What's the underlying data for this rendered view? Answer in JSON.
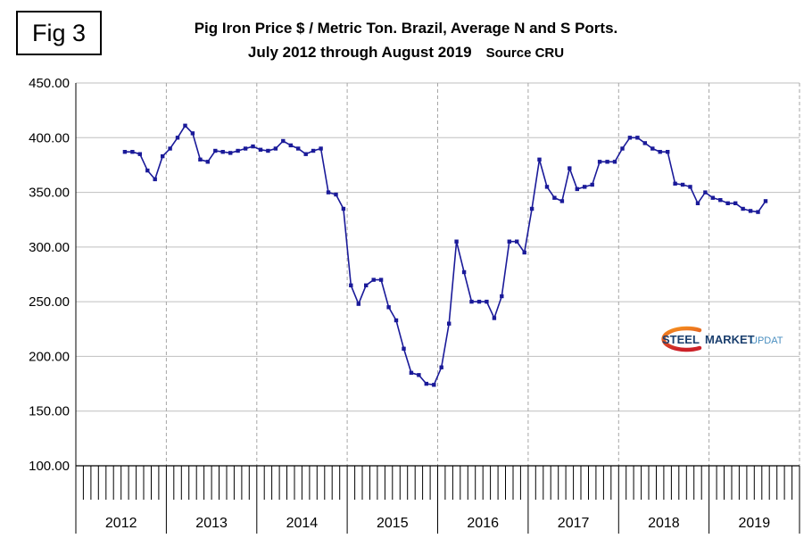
{
  "fig_label": "Fig 3",
  "title": {
    "line1": "Pig Iron Price $ / Metric Ton. Brazil, Average N and S Ports.",
    "line2": "July 2012 through August 2019",
    "source": "Source CRU"
  },
  "logo": {
    "steel": "STEEL",
    "market": "MARKET",
    "update": "UPDATE",
    "navy": "#1b3f6e",
    "light_blue": "#4a8fc0",
    "swoosh_orange": "#f7941d",
    "swoosh_red": "#cc2229"
  },
  "chart_data": {
    "type": "line",
    "title": "Pig Iron Price $ / Metric Ton. Brazil, Average N and S Ports.",
    "subtitle": "July 2012 through August 2019",
    "source": "Source CRU",
    "start_month": "2012-07",
    "end_month": "2019-08",
    "x_axis": {
      "start_year": 2012,
      "end_year_exclusive": 2020,
      "year_labels": [
        "2012",
        "2013",
        "2014",
        "2015",
        "2016",
        "2017",
        "2018",
        "2019"
      ]
    },
    "y_axis": {
      "min": 100,
      "max": 450,
      "step": 50,
      "tick_labels": [
        "450.00",
        "400.00",
        "350.00",
        "300.00",
        "250.00",
        "200.00",
        "150.00",
        "100.00"
      ]
    },
    "grid": {
      "horizontal": "solid-gray",
      "vertical": "dashed-gray-at-year-boundaries"
    },
    "legend": "none",
    "series_start_month_index": 6,
    "series": [
      {
        "name": "Pig Iron Price $/Metric Ton",
        "color": "#1a1a99",
        "marker": "square",
        "values": [
          387,
          387,
          385,
          370,
          362,
          383,
          390,
          400,
          411,
          404,
          380,
          378,
          388,
          387,
          386,
          388,
          390,
          392,
          389,
          388,
          390,
          397,
          393,
          390,
          385,
          388,
          390,
          350,
          348,
          335,
          265,
          248,
          265,
          270,
          270,
          245,
          233,
          207,
          185,
          183,
          175,
          174,
          190,
          230,
          305,
          277,
          250,
          250,
          250,
          235,
          255,
          305,
          305,
          295,
          335,
          380,
          355,
          345,
          342,
          372,
          353,
          355,
          357,
          378,
          378,
          378,
          390,
          400,
          400,
          395,
          390,
          387,
          387,
          358,
          357,
          355,
          340,
          350,
          345,
          343,
          340,
          340,
          335,
          333,
          332,
          342
        ]
      }
    ]
  }
}
